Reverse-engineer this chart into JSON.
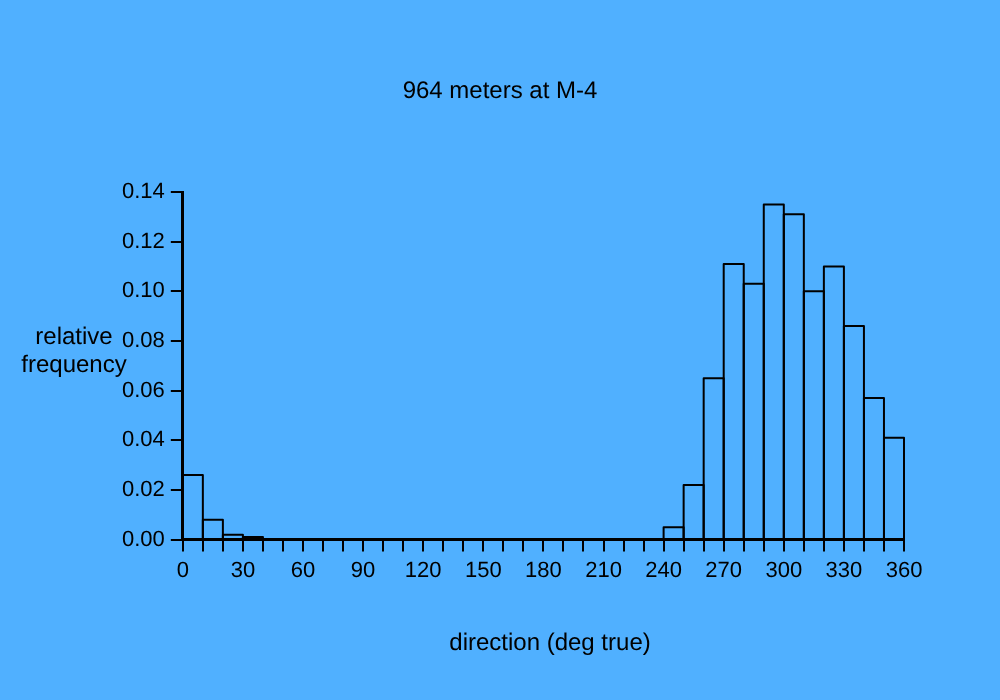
{
  "chart_data": {
    "type": "histogram",
    "title": "964 meters at M-4",
    "xlabel": "direction (deg true)",
    "ylabel": "relative frequency",
    "bins": [
      0,
      10,
      20,
      30,
      40,
      50,
      60,
      70,
      80,
      90,
      100,
      110,
      120,
      130,
      140,
      150,
      160,
      170,
      180,
      190,
      200,
      210,
      220,
      230,
      240,
      250,
      260,
      270,
      280,
      290,
      300,
      310,
      320,
      330,
      340,
      350,
      360
    ],
    "values": [
      0.026,
      0.008,
      0.002,
      0.001,
      0,
      0,
      0,
      0,
      0,
      0,
      0,
      0,
      0,
      0,
      0,
      0,
      0,
      0,
      0,
      0,
      0,
      0,
      0,
      0,
      0.005,
      0.022,
      0.065,
      0.111,
      0.103,
      0.135,
      0.131,
      0.1,
      0.11,
      0.086,
      0.057,
      0.041
    ],
    "color": "#000000",
    "xlim": [
      0,
      360
    ],
    "xticks": [
      0,
      {
        "value": 10,
        "label": null
      },
      {
        "value": 20,
        "label": null
      },
      30,
      {
        "value": 40,
        "label": null
      },
      {
        "value": 50,
        "label": null
      },
      60,
      {
        "value": 70,
        "label": null
      },
      {
        "value": 80,
        "label": null
      },
      90,
      {
        "value": 100,
        "label": null
      },
      {
        "value": 110,
        "label": null
      },
      120,
      {
        "value": 130,
        "label": null
      },
      {
        "value": 140,
        "label": null
      },
      150,
      {
        "value": 160,
        "label": null
      },
      {
        "value": 170,
        "label": null
      },
      180,
      {
        "value": 190,
        "label": null
      },
      {
        "value": 200,
        "label": null
      },
      210,
      {
        "value": 220,
        "label": null
      },
      {
        "value": 230,
        "label": null
      },
      240,
      {
        "value": 250,
        "label": null
      },
      {
        "value": 260,
        "label": null
      },
      270,
      {
        "value": 280,
        "label": null
      },
      {
        "value": 290,
        "label": null
      },
      300,
      {
        "value": 310,
        "label": null
      },
      {
        "value": 320,
        "label": null
      },
      330,
      {
        "value": 340,
        "label": null
      },
      {
        "value": 350,
        "label": null
      },
      360
    ],
    "ylim": [
      0,
      0.14
    ],
    "yticks": [
      {
        "value": 0,
        "label": "0.00"
      },
      {
        "value": 0.02,
        "label": "0.02"
      },
      {
        "value": 0.04,
        "label": "0.04"
      },
      {
        "value": 0.06,
        "label": "0.06"
      },
      {
        "value": 0.08,
        "label": "0.08"
      },
      {
        "value": 0.1,
        "label": "0.10"
      },
      {
        "value": 0.12,
        "label": "0.12"
      },
      {
        "value": 0.14,
        "label": "0.14"
      }
    ],
    "grid": false
  }
}
